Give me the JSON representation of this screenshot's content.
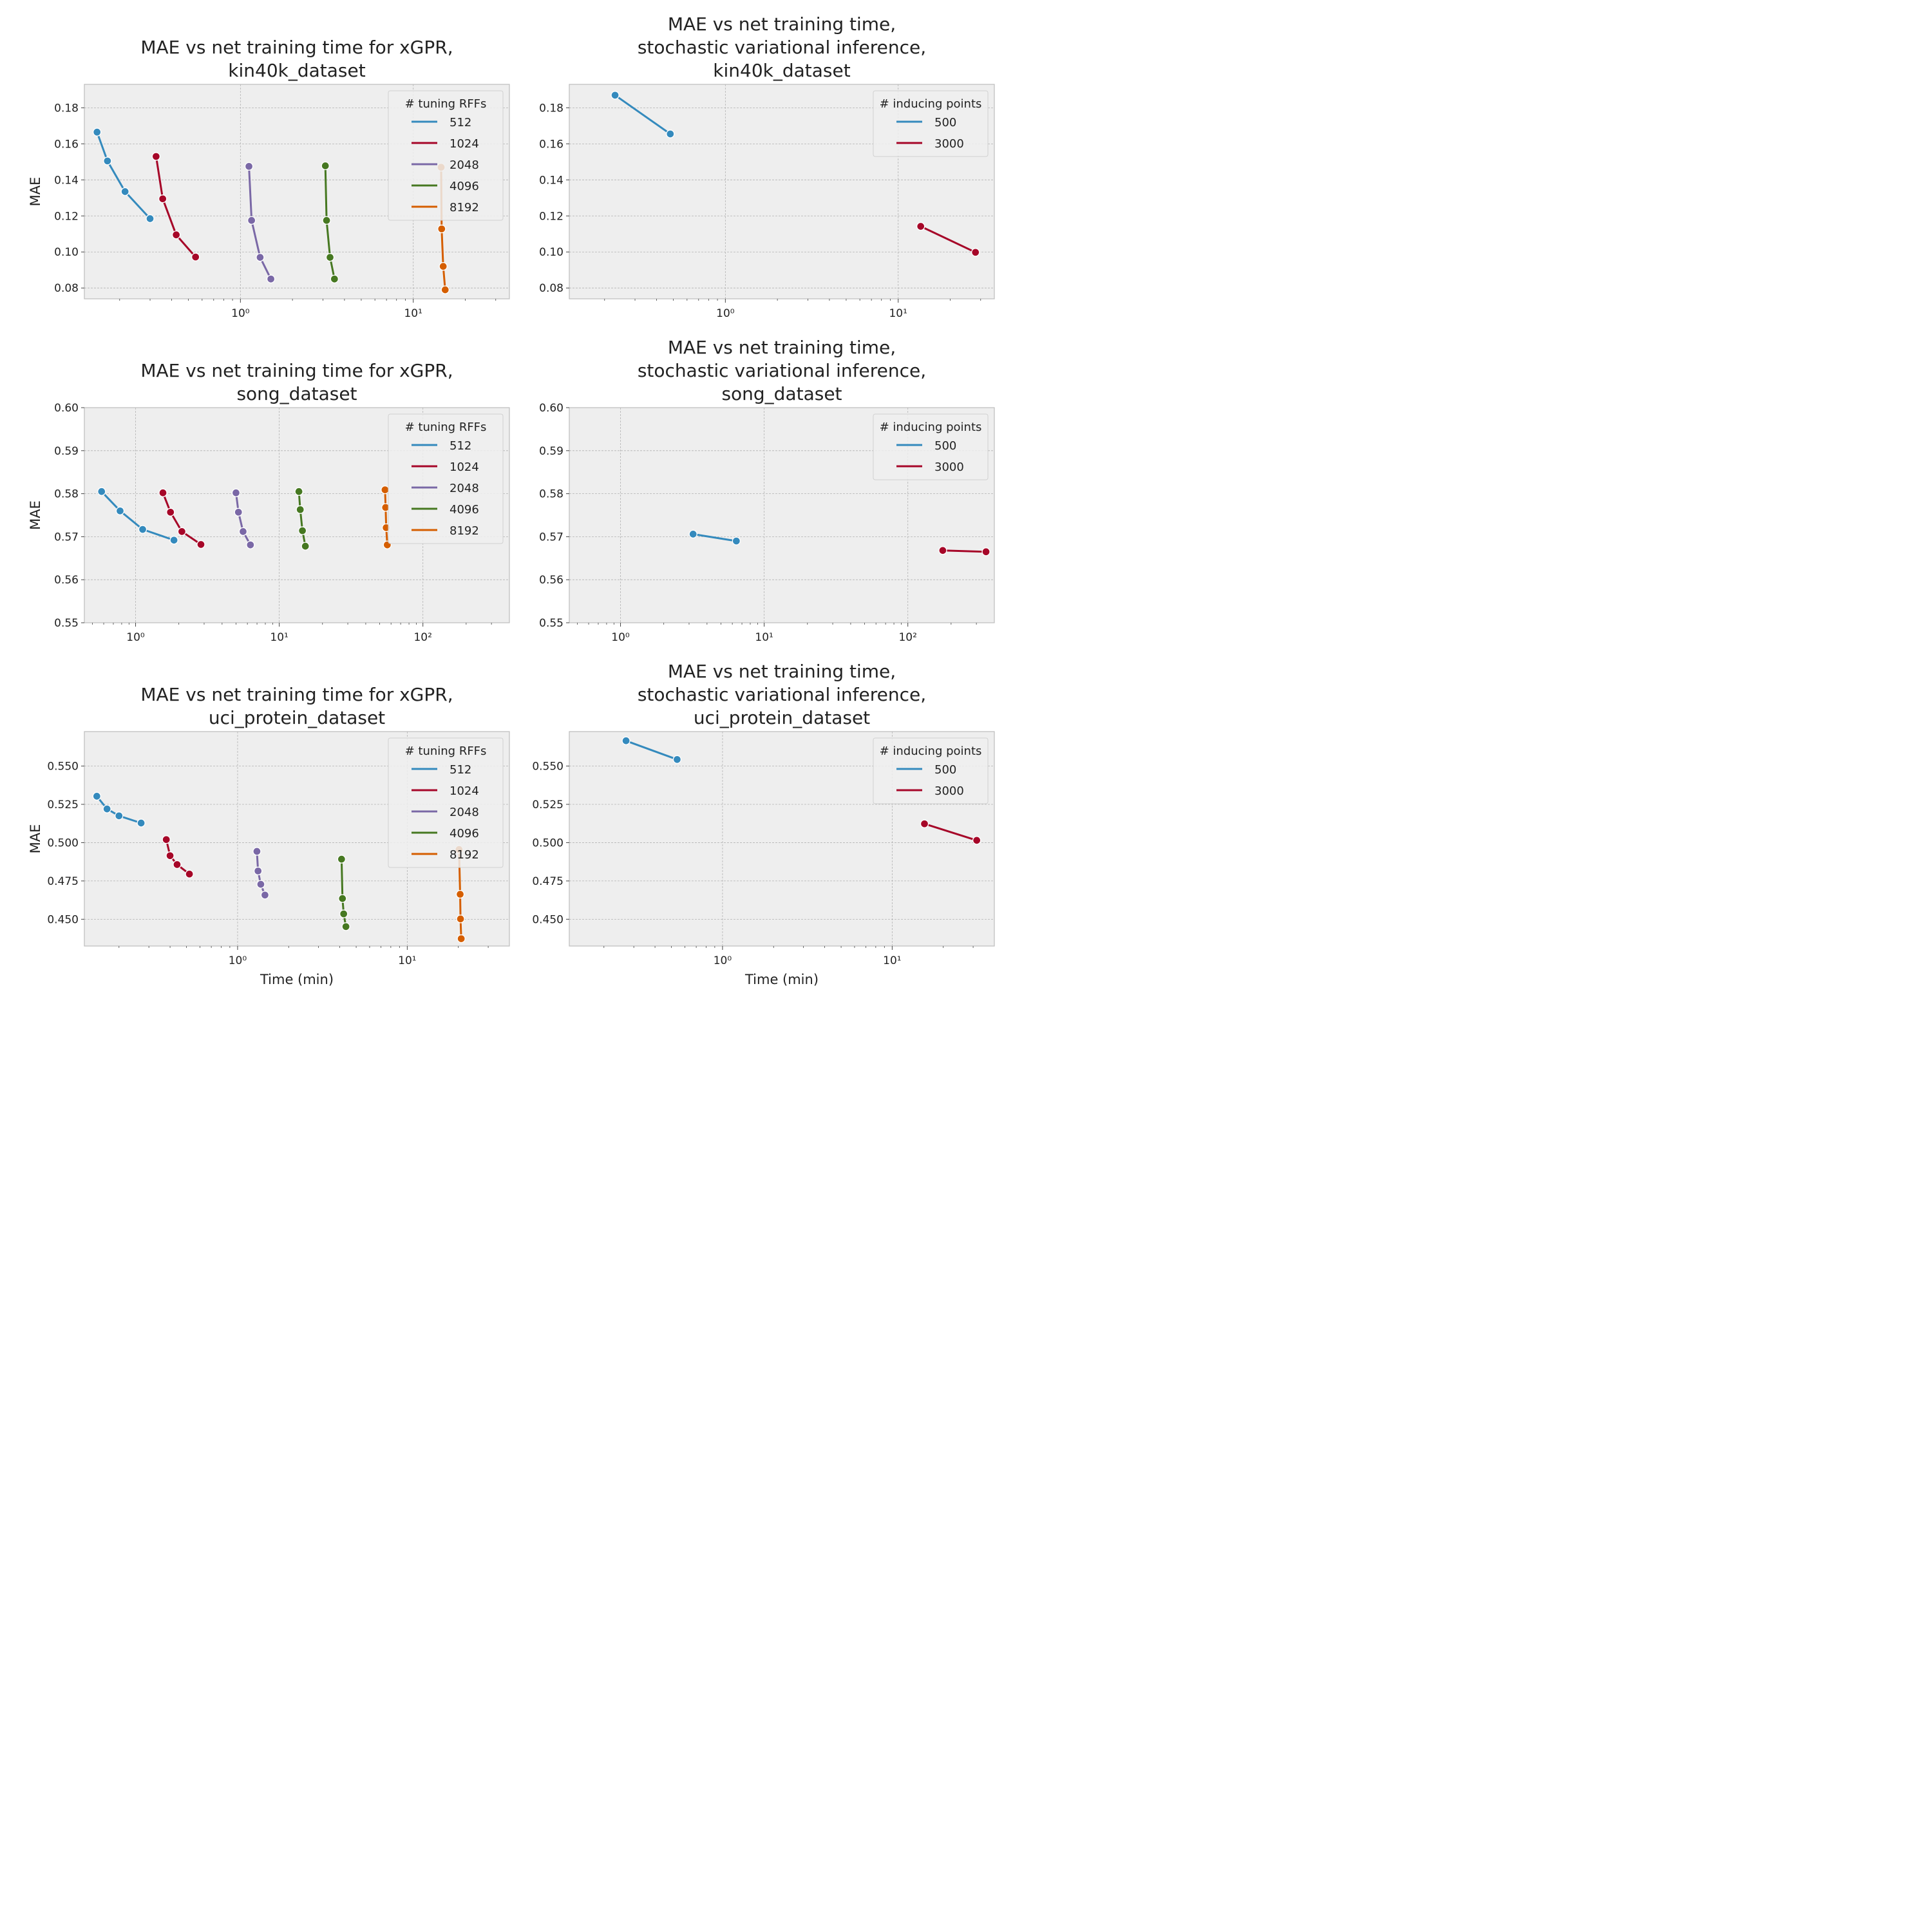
{
  "colors": {
    "series": [
      "#348ABD",
      "#A60628",
      "#7A68A6",
      "#467821",
      "#D55E00"
    ],
    "panel_bg": "#EEEEEE",
    "grid": "#B2B2B2",
    "frame": "#BCBCBC"
  },
  "chart_data": [
    {
      "type": "line",
      "title": "MAE vs net training time for xGPR,\nkin40k_dataset",
      "xlabel": "",
      "ylabel": "MAE",
      "xscale": "log",
      "xlim": [
        0.125,
        36
      ],
      "ylim": [
        0.074,
        0.193
      ],
      "yticks": [
        0.08,
        0.1,
        0.12,
        0.14,
        0.16,
        0.18
      ],
      "yticklabels": [
        "0.08",
        "0.10",
        "0.12",
        "0.14",
        "0.16",
        "0.18"
      ],
      "xticks": [
        1,
        10
      ],
      "xticklabels": [
        "10⁰",
        "10¹"
      ],
      "legend_title": "# tuning RFFs",
      "legend_location": "top-right",
      "grid": true,
      "series": [
        {
          "name": "512",
          "x": [
            0.148,
            0.17,
            0.215,
            0.3
          ],
          "y": [
            0.1665,
            0.1505,
            0.1335,
            0.1185
          ]
        },
        {
          "name": "1024",
          "x": [
            0.325,
            0.355,
            0.425,
            0.55
          ],
          "y": [
            0.153,
            0.1295,
            0.1095,
            0.0972
          ]
        },
        {
          "name": "2048",
          "x": [
            1.12,
            1.16,
            1.3,
            1.5
          ],
          "y": [
            0.1475,
            0.1175,
            0.097,
            0.085
          ]
        },
        {
          "name": "4096",
          "x": [
            3.1,
            3.15,
            3.3,
            3.5
          ],
          "y": [
            0.1478,
            0.1175,
            0.097,
            0.085
          ]
        },
        {
          "name": "8192",
          "x": [
            14.5,
            14.6,
            14.9,
            15.3
          ],
          "y": [
            0.147,
            0.1128,
            0.092,
            0.079
          ]
        }
      ]
    },
    {
      "type": "line",
      "title": "MAE vs net training time,\nstochastic variational inference,\nkin40k_dataset",
      "xlabel": "",
      "ylabel": "",
      "xscale": "log",
      "xlim": [
        0.125,
        36
      ],
      "ylim": [
        0.074,
        0.193
      ],
      "yticks": [
        0.08,
        0.1,
        0.12,
        0.14,
        0.16,
        0.18
      ],
      "yticklabels": [
        "0.08",
        "0.10",
        "0.12",
        "0.14",
        "0.16",
        "0.18"
      ],
      "xticks": [
        1,
        10
      ],
      "xticklabels": [
        "10⁰",
        "10¹"
      ],
      "legend_title": "# inducing points",
      "legend_location": "top-right",
      "grid": true,
      "series": [
        {
          "name": "500",
          "x": [
            0.23,
            0.48
          ],
          "y": [
            0.187,
            0.1655
          ]
        },
        {
          "name": "3000",
          "x": [
            13.5,
            28
          ],
          "y": [
            0.1142,
            0.0998
          ]
        }
      ]
    },
    {
      "type": "line",
      "title": "MAE vs net training time for xGPR,\nsong_dataset",
      "xlabel": "",
      "ylabel": "MAE",
      "xscale": "log",
      "xlim": [
        0.44,
        400
      ],
      "ylim": [
        0.55,
        0.6
      ],
      "yticks": [
        0.55,
        0.56,
        0.57,
        0.58,
        0.59,
        0.6
      ],
      "yticklabels": [
        "0.55",
        "0.56",
        "0.57",
        "0.58",
        "0.59",
        "0.60"
      ],
      "xticks": [
        1,
        10,
        100
      ],
      "xticklabels": [
        "10⁰",
        "10¹",
        "10²"
      ],
      "legend_title": "# tuning RFFs",
      "legend_location": "top-right",
      "grid": true,
      "series": [
        {
          "name": "512",
          "x": [
            0.58,
            0.78,
            1.12,
            1.85
          ],
          "y": [
            0.5805,
            0.576,
            0.5717,
            0.5692
          ]
        },
        {
          "name": "1024",
          "x": [
            1.55,
            1.75,
            2.1,
            2.85
          ],
          "y": [
            0.5802,
            0.5757,
            0.5712,
            0.5682
          ]
        },
        {
          "name": "2048",
          "x": [
            5.0,
            5.2,
            5.6,
            6.3
          ],
          "y": [
            0.5802,
            0.5757,
            0.5712,
            0.5681
          ]
        },
        {
          "name": "4096",
          "x": [
            13.7,
            14.0,
            14.5,
            15.2
          ],
          "y": [
            0.5805,
            0.5763,
            0.5714,
            0.5678
          ]
        },
        {
          "name": "8192",
          "x": [
            54.5,
            55.0,
            55.5,
            56.5
          ],
          "y": [
            0.5809,
            0.5768,
            0.5721,
            0.5681
          ]
        }
      ]
    },
    {
      "type": "line",
      "title": "MAE vs net training time,\nstochastic variational inference,\nsong_dataset",
      "xlabel": "",
      "ylabel": "",
      "xscale": "log",
      "xlim": [
        0.44,
        400
      ],
      "ylim": [
        0.55,
        0.6
      ],
      "yticks": [
        0.55,
        0.56,
        0.57,
        0.58,
        0.59,
        0.6
      ],
      "yticklabels": [
        "0.55",
        "0.56",
        "0.57",
        "0.58",
        "0.59",
        "0.60"
      ],
      "xticks": [
        1,
        10,
        100
      ],
      "xticklabels": [
        "10⁰",
        "10¹",
        "10²"
      ],
      "legend_title": "# inducing points",
      "legend_location": "top-right",
      "grid": true,
      "series": [
        {
          "name": "500",
          "x": [
            3.2,
            6.4
          ],
          "y": [
            0.5706,
            0.569
          ]
        },
        {
          "name": "3000",
          "x": [
            175,
            350
          ],
          "y": [
            0.5668,
            0.5665
          ]
        }
      ]
    },
    {
      "type": "line",
      "title": "MAE vs net training time for xGPR,\nuci_protein_dataset",
      "xlabel": "Time (min)",
      "ylabel": "MAE",
      "xscale": "log",
      "xlim": [
        0.125,
        40
      ],
      "ylim": [
        0.4325,
        0.5725
      ],
      "yticks": [
        0.45,
        0.475,
        0.5,
        0.525,
        0.55
      ],
      "yticklabels": [
        "0.450",
        "0.475",
        "0.500",
        "0.525",
        "0.550"
      ],
      "xticks": [
        1,
        10
      ],
      "xticklabels": [
        "10⁰",
        "10¹"
      ],
      "legend_title": "# tuning RFFs",
      "legend_location": "top-right",
      "grid": true,
      "series": [
        {
          "name": "512",
          "x": [
            0.148,
            0.17,
            0.2,
            0.27
          ],
          "y": [
            0.5303,
            0.522,
            0.5175,
            0.5128
          ]
        },
        {
          "name": "1024",
          "x": [
            0.38,
            0.4,
            0.44,
            0.52
          ],
          "y": [
            0.502,
            0.4915,
            0.4857,
            0.4795
          ]
        },
        {
          "name": "2048",
          "x": [
            1.3,
            1.32,
            1.37,
            1.45
          ],
          "y": [
            0.4943,
            0.4815,
            0.4728,
            0.4658
          ]
        },
        {
          "name": "4096",
          "x": [
            4.1,
            4.15,
            4.22,
            4.35
          ],
          "y": [
            0.4892,
            0.4635,
            0.4535,
            0.4452
          ]
        },
        {
          "name": "8192",
          "x": [
            20.2,
            20.5,
            20.6,
            20.8
          ],
          "y": [
            0.4955,
            0.4663,
            0.4502,
            0.4373
          ]
        }
      ]
    },
    {
      "type": "line",
      "title": "MAE vs net training time,\nstochastic variational inference,\nuci_protein_dataset",
      "xlabel": "Time (min)",
      "ylabel": "",
      "xscale": "log",
      "xlim": [
        0.125,
        40
      ],
      "ylim": [
        0.4325,
        0.5725
      ],
      "yticks": [
        0.45,
        0.475,
        0.5,
        0.525,
        0.55
      ],
      "yticklabels": [
        "0.450",
        "0.475",
        "0.500",
        "0.525",
        "0.550"
      ],
      "xticks": [
        1,
        10
      ],
      "xticklabels": [
        "10⁰",
        "10¹"
      ],
      "legend_title": "# inducing points",
      "legend_location": "top-right",
      "grid": true,
      "series": [
        {
          "name": "500",
          "x": [
            0.27,
            0.54
          ],
          "y": [
            0.5665,
            0.5543
          ]
        },
        {
          "name": "3000",
          "x": [
            15.5,
            31.5
          ],
          "y": [
            0.5123,
            0.5015
          ]
        }
      ]
    }
  ]
}
